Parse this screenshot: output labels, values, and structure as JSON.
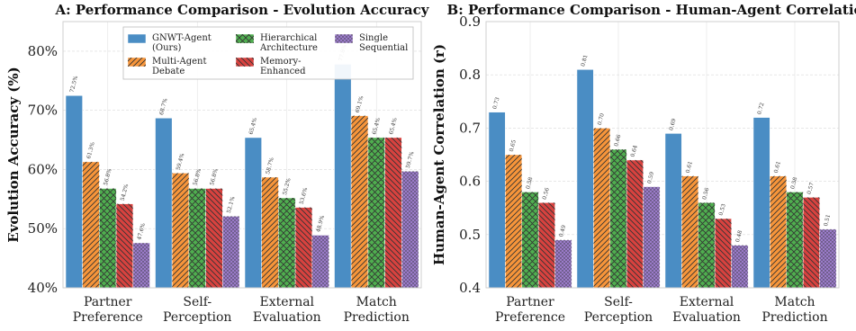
{
  "chart_data": [
    {
      "type": "bar",
      "title": "A: Performance Comparison - Evolution Accuracy",
      "ylabel": "Evolution Accuracy (%)",
      "xlabel": "",
      "ylim": [
        40,
        85
      ],
      "yticks": [
        40,
        50,
        60,
        70,
        80
      ],
      "ytick_labels": [
        "40%",
        "50%",
        "60%",
        "70%",
        "80%"
      ],
      "categories": [
        [
          "Partner",
          "Preference"
        ],
        [
          "Self-",
          "Perception"
        ],
        [
          "External",
          "Evaluation"
        ],
        [
          "Match",
          "Prediction"
        ]
      ],
      "legend": true,
      "legend_position": "top",
      "grid": true,
      "series": [
        {
          "name": "GNWT-Agent (Ours)",
          "values": [
            72.5,
            68.7,
            65.4,
            77.8
          ],
          "labels": [
            "72.5%",
            "68.7%",
            "65.4%",
            "77.8%"
          ]
        },
        {
          "name": "Multi-Agent Debate",
          "values": [
            61.3,
            59.4,
            58.7,
            69.1
          ],
          "labels": [
            "61.3%",
            "59.4%",
            "58.7%",
            "69.1%"
          ]
        },
        {
          "name": "Hierarchical Architecture",
          "values": [
            56.8,
            56.8,
            55.2,
            65.4
          ],
          "labels": [
            "56.8%",
            "56.8%",
            "55.2%",
            "65.4%"
          ]
        },
        {
          "name": "Memory-Enhanced",
          "values": [
            54.2,
            56.8,
            53.6,
            65.4
          ],
          "labels": [
            "54.2%",
            "56.8%",
            "53.6%",
            "65.4%"
          ]
        },
        {
          "name": "Single Sequential",
          "values": [
            47.6,
            52.1,
            48.9,
            59.7
          ],
          "labels": [
            "47.6%",
            "52.1%",
            "48.9%",
            "59.7%"
          ]
        }
      ]
    },
    {
      "type": "bar",
      "title": "B: Performance Comparison - Human-Agent Correlation",
      "ylabel": "Human-Agent Correlation (r)",
      "xlabel": "",
      "ylim": [
        0.4,
        0.9
      ],
      "yticks": [
        0.4,
        0.5,
        0.6,
        0.7,
        0.8,
        0.9
      ],
      "ytick_labels": [
        "0.4",
        "0.5",
        "0.6",
        "0.7",
        "0.8",
        "0.9"
      ],
      "categories": [
        [
          "Partner",
          "Preference"
        ],
        [
          "Self-",
          "Perception"
        ],
        [
          "External",
          "Evaluation"
        ],
        [
          "Match",
          "Prediction"
        ]
      ],
      "legend": false,
      "grid": true,
      "series": [
        {
          "name": "GNWT-Agent (Ours)",
          "values": [
            0.73,
            0.81,
            0.69,
            0.72
          ],
          "labels": [
            "0.73",
            "0.81",
            "0.69",
            "0.72"
          ]
        },
        {
          "name": "Multi-Agent Debate",
          "values": [
            0.65,
            0.7,
            0.61,
            0.61
          ],
          "labels": [
            "0.65",
            "0.70",
            "0.61",
            "0.61"
          ]
        },
        {
          "name": "Hierarchical Architecture",
          "values": [
            0.58,
            0.66,
            0.56,
            0.58
          ],
          "labels": [
            "0.58",
            "0.66",
            "0.56",
            "0.58"
          ]
        },
        {
          "name": "Memory-Enhanced",
          "values": [
            0.56,
            0.64,
            0.53,
            0.57
          ],
          "labels": [
            "0.56",
            "0.64",
            "0.53",
            "0.57"
          ]
        },
        {
          "name": "Single Sequential",
          "values": [
            0.49,
            0.59,
            0.48,
            0.51
          ],
          "labels": [
            "0.49",
            "0.59",
            "0.48",
            "0.51"
          ]
        }
      ]
    }
  ],
  "legend_entries": [
    {
      "lines": [
        "GNWT-Agent",
        "(Ours)"
      ]
    },
    {
      "lines": [
        "Hierarchical",
        "Architecture"
      ]
    },
    {
      "lines": [
        "Single",
        "Sequential"
      ]
    },
    {
      "lines": [
        "Multi-Agent",
        "Debate"
      ]
    },
    {
      "lines": [
        "Memory-",
        "Enhanced"
      ]
    }
  ],
  "series_colors": [
    "#4a8dc4",
    "#f7953a",
    "#4fae4f",
    "#d8423f",
    "#9a7bc9"
  ],
  "series_patterns": [
    "none",
    "diagonal-hatch",
    "crosshatch",
    "back-diagonal-hatch",
    "dots"
  ]
}
